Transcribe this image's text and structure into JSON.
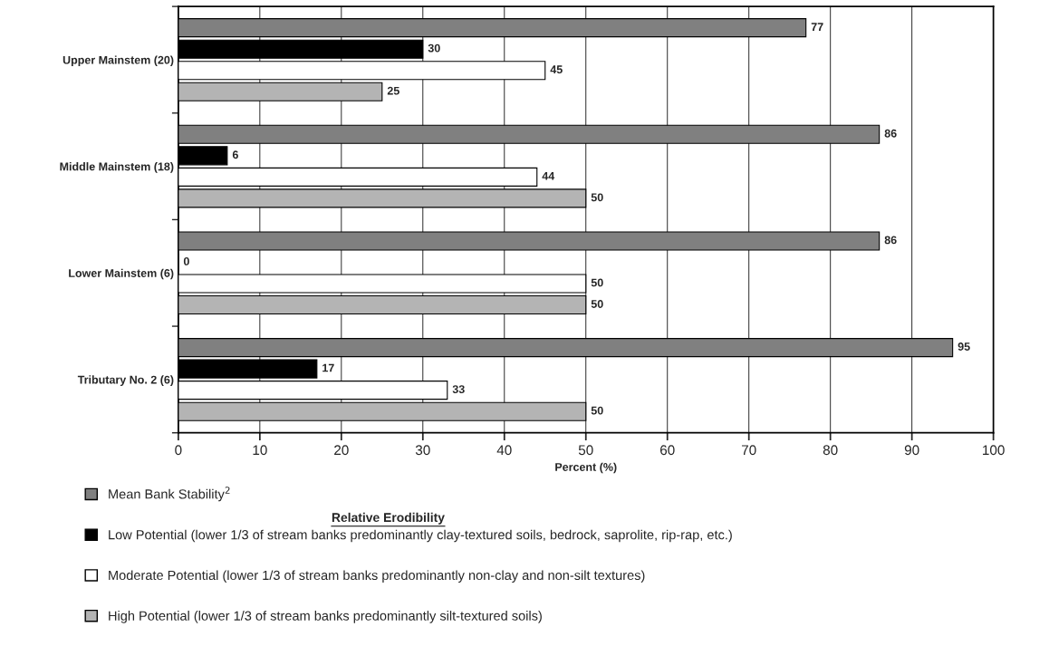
{
  "chart_data": {
    "type": "bar",
    "orientation": "horizontal",
    "xlabel": "Percent (%)",
    "categories": [
      "Upper Mainstem (20)",
      "Middle Mainstem (18)",
      "Lower Mainstem (6)",
      "Tributary No. 2 (6)"
    ],
    "series": [
      {
        "name": "Mean Bank Stability$^{2}$",
        "color": "#808080",
        "values": [
          77,
          86,
          86,
          95
        ]
      },
      {
        "name": "Low Potential (lower 1/3 of stream banks predominantly clay-textured soils, bedrock, saprolite, rip-rap, etc.)",
        "color": "#000000",
        "values": [
          30,
          6,
          0,
          17
        ]
      },
      {
        "name": "Moderate Potential (lower 1/3 of stream banks predominantly non-clay and non-silt textures)",
        "color": "#ffffff",
        "values": [
          45,
          44,
          50,
          33
        ]
      },
      {
        "name": "High Potential (lower 1/3 of stream banks predominantly silt-textured soils)",
        "color": "#b4b4b4",
        "values": [
          25,
          50,
          50,
          50
        ]
      }
    ],
    "xlim": [
      0,
      100
    ],
    "xticks": [
      0,
      10,
      20,
      30,
      40,
      50,
      60,
      70,
      80,
      90,
      100
    ],
    "grid": "x",
    "legend": "bottom",
    "data_labels": true,
    "annotations": [
      "Relative Erodibility"
    ]
  }
}
